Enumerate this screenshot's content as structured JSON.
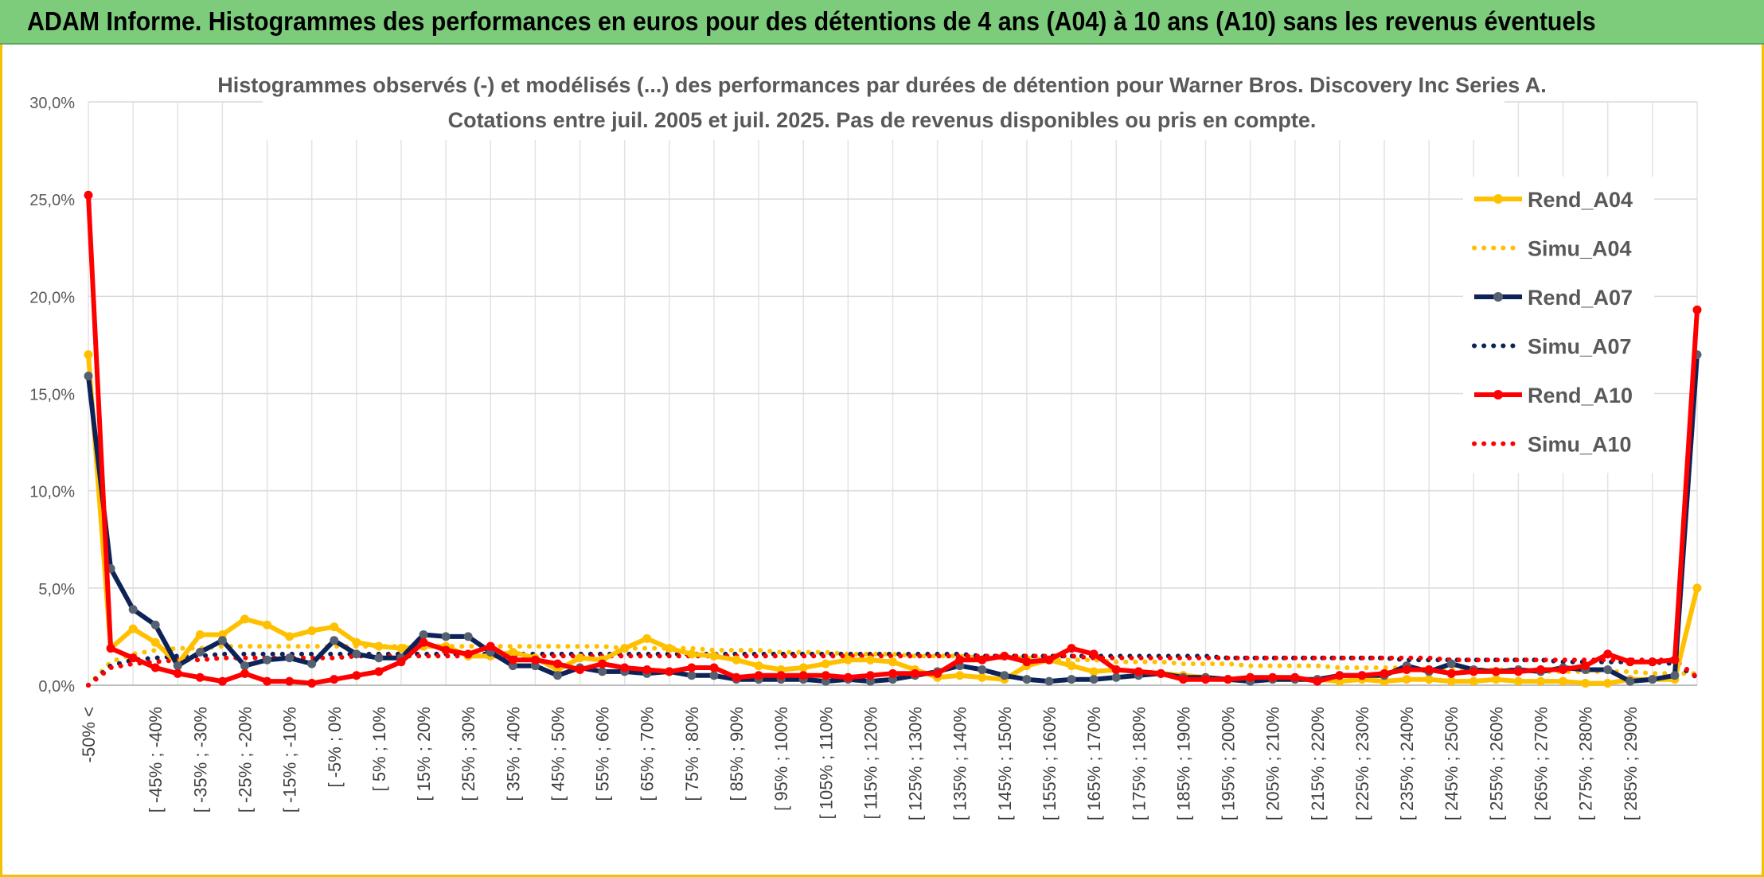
{
  "banner": {
    "title": "ADAM Informe. Histogrammes des performances en euros pour des détentions de 4 ans (A04) à 10 ans (A10) sans les revenus éventuels"
  },
  "colors": {
    "A04": "#ffc000",
    "A07": "#0d2357",
    "A07_marker": "#556070",
    "A10": "#ff0000",
    "banner": "#7ccc7c",
    "grid": "#d9d9d9"
  },
  "chart_data": {
    "type": "line",
    "title": "Histogrammes observés (-) et modélisés (...) des performances par durées de détention pour Warner Bros. Discovery Inc Series A.",
    "subtitle": "Cotations entre juil. 2005 et juil. 2025. Pas de revenus disponibles ou pris en compte.",
    "ylim": [
      0,
      30
    ],
    "grid": true,
    "legend_position": "right",
    "y_ticks": [
      "0,0%",
      "5,0%",
      "10,0%",
      "15,0%",
      "20,0%",
      "25,0%",
      "30,0%"
    ],
    "x_tick_labels": [
      "-50% <",
      "[ -45% ; -40%",
      "[ -35% ; -30%",
      "[ -25% ; -20%",
      "[ -15% ; -10%",
      "[ -5% ; 0%",
      "[ 5% ; 10%",
      "[ 15% ; 20%",
      "[ 25% ; 30%",
      "[ 35% ; 40%",
      "[ 45% ; 50%",
      "[ 55% ; 60%",
      "[ 65% ; 70%",
      "[ 75% ; 80%",
      "[ 85% ; 90%",
      "[ 95% ; 100%",
      "[ 105% ; 110%",
      "[ 115% ; 120%",
      "[ 125% ; 130%",
      "[ 135% ; 140%",
      "[ 145% ; 150%",
      "[ 155% ; 160%",
      "[ 165% ; 170%",
      "[ 175% ; 180%",
      "[ 185% ; 190%",
      "[ 195% ; 200%",
      "[ 205% ; 210%",
      "[ 215% ; 220%",
      "[ 225% ; 230%",
      "[ 235% ; 240%",
      "[ 245% ; 250%",
      "[ 255% ; 260%",
      "[ 265% ; 270%",
      "[ 275% ; 280%",
      "[ 285% ; 290%"
    ],
    "series": [
      {
        "name": "Rend_A04",
        "style": "solid",
        "color": "#ffc000",
        "values": [
          17.0,
          1.9,
          2.9,
          2.2,
          1.1,
          2.6,
          2.6,
          3.4,
          3.1,
          2.5,
          2.8,
          3.0,
          2.2,
          2.0,
          1.9,
          2.0,
          2.0,
          1.5,
          1.5,
          1.7,
          1.4,
          0.8,
          1.4,
          1.3,
          1.9,
          2.4,
          1.9,
          1.6,
          1.5,
          1.3,
          1.0,
          0.8,
          0.9,
          1.1,
          1.3,
          1.3,
          1.2,
          0.8,
          0.4,
          0.5,
          0.4,
          0.3,
          1.0,
          1.3,
          1.0,
          0.7,
          0.8,
          0.7,
          0.6,
          0.5,
          0.4,
          0.3,
          0.4,
          0.3,
          0.3,
          0.3,
          0.2,
          0.3,
          0.2,
          0.3,
          0.3,
          0.2,
          0.2,
          0.3,
          0.2,
          0.2,
          0.2,
          0.1,
          0.1,
          0.3,
          0.3,
          0.3,
          5.0
        ]
      },
      {
        "name": "Simu_A04",
        "style": "dotted",
        "color": "#ffc000",
        "values": [
          0.0,
          1.2,
          1.6,
          1.8,
          1.9,
          1.9,
          2.0,
          2.0,
          2.0,
          2.0,
          2.0,
          2.0,
          2.0,
          2.0,
          2.0,
          2.0,
          2.0,
          2.0,
          2.0,
          2.0,
          2.0,
          2.0,
          2.0,
          2.0,
          1.9,
          1.9,
          1.9,
          1.9,
          1.8,
          1.8,
          1.8,
          1.7,
          1.7,
          1.7,
          1.6,
          1.6,
          1.6,
          1.5,
          1.5,
          1.5,
          1.4,
          1.4,
          1.4,
          1.3,
          1.3,
          1.3,
          1.2,
          1.2,
          1.2,
          1.1,
          1.1,
          1.1,
          1.0,
          1.0,
          1.0,
          1.0,
          0.9,
          0.9,
          0.9,
          0.9,
          0.8,
          0.8,
          0.8,
          0.8,
          0.8,
          0.7,
          0.7,
          0.7,
          0.7,
          0.7,
          0.6,
          0.6,
          0.6
        ]
      },
      {
        "name": "Rend_A07",
        "style": "solid",
        "color": "#0d2357",
        "values": [
          15.9,
          6.0,
          3.9,
          3.1,
          1.0,
          1.7,
          2.3,
          1.0,
          1.3,
          1.4,
          1.1,
          2.3,
          1.6,
          1.4,
          1.4,
          2.6,
          2.5,
          2.5,
          1.7,
          1.0,
          1.0,
          0.5,
          0.9,
          0.7,
          0.7,
          0.6,
          0.7,
          0.5,
          0.5,
          0.3,
          0.3,
          0.3,
          0.3,
          0.2,
          0.3,
          0.2,
          0.3,
          0.5,
          0.7,
          1.0,
          0.8,
          0.5,
          0.3,
          0.2,
          0.3,
          0.3,
          0.4,
          0.5,
          0.6,
          0.4,
          0.4,
          0.3,
          0.2,
          0.3,
          0.3,
          0.3,
          0.5,
          0.5,
          0.5,
          1.0,
          0.7,
          1.1,
          0.8,
          0.7,
          0.8,
          0.7,
          0.9,
          0.8,
          0.8,
          0.2,
          0.3,
          0.5,
          17.0
        ]
      },
      {
        "name": "Simu_A07",
        "style": "dotted",
        "color": "#0d2357",
        "values": [
          0.0,
          1.0,
          1.3,
          1.4,
          1.5,
          1.5,
          1.6,
          1.6,
          1.6,
          1.6,
          1.6,
          1.6,
          1.6,
          1.6,
          1.6,
          1.6,
          1.6,
          1.6,
          1.6,
          1.6,
          1.6,
          1.6,
          1.6,
          1.6,
          1.6,
          1.6,
          1.6,
          1.6,
          1.6,
          1.6,
          1.6,
          1.6,
          1.6,
          1.6,
          1.6,
          1.6,
          1.6,
          1.6,
          1.6,
          1.6,
          1.5,
          1.5,
          1.5,
          1.5,
          1.5,
          1.5,
          1.5,
          1.5,
          1.5,
          1.5,
          1.5,
          1.4,
          1.4,
          1.4,
          1.4,
          1.4,
          1.4,
          1.4,
          1.4,
          1.3,
          1.3,
          1.3,
          1.3,
          1.3,
          1.3,
          1.3,
          1.2,
          1.2,
          1.2,
          1.2,
          1.2,
          1.1,
          0.4
        ]
      },
      {
        "name": "Rend_A10",
        "style": "solid",
        "color": "#ff0000",
        "values": [
          25.2,
          1.9,
          1.4,
          0.9,
          0.6,
          0.4,
          0.2,
          0.6,
          0.2,
          0.2,
          0.1,
          0.3,
          0.5,
          0.7,
          1.2,
          2.2,
          1.8,
          1.6,
          2.0,
          1.3,
          1.3,
          1.1,
          0.8,
          1.1,
          0.9,
          0.8,
          0.7,
          0.9,
          0.9,
          0.4,
          0.5,
          0.5,
          0.5,
          0.5,
          0.4,
          0.5,
          0.6,
          0.6,
          0.6,
          1.3,
          1.3,
          1.5,
          1.2,
          1.3,
          1.9,
          1.6,
          0.8,
          0.7,
          0.6,
          0.3,
          0.3,
          0.3,
          0.4,
          0.4,
          0.4,
          0.2,
          0.5,
          0.5,
          0.6,
          0.8,
          0.8,
          0.6,
          0.7,
          0.7,
          0.7,
          0.8,
          0.8,
          1.0,
          1.6,
          1.2,
          1.2,
          1.3,
          19.3
        ]
      },
      {
        "name": "Simu_A10",
        "style": "dotted",
        "color": "#ff0000",
        "values": [
          0.0,
          0.9,
          1.1,
          1.2,
          1.3,
          1.3,
          1.4,
          1.4,
          1.4,
          1.4,
          1.4,
          1.4,
          1.5,
          1.5,
          1.5,
          1.5,
          1.5,
          1.5,
          1.5,
          1.5,
          1.5,
          1.5,
          1.5,
          1.5,
          1.5,
          1.5,
          1.5,
          1.5,
          1.5,
          1.5,
          1.5,
          1.5,
          1.5,
          1.5,
          1.5,
          1.5,
          1.5,
          1.5,
          1.5,
          1.5,
          1.5,
          1.5,
          1.5,
          1.5,
          1.5,
          1.4,
          1.4,
          1.4,
          1.4,
          1.4,
          1.4,
          1.4,
          1.4,
          1.4,
          1.4,
          1.4,
          1.4,
          1.4,
          1.4,
          1.4,
          1.4,
          1.3,
          1.3,
          1.3,
          1.3,
          1.3,
          1.3,
          1.3,
          1.3,
          1.3,
          1.3,
          1.3,
          0.4
        ]
      }
    ]
  }
}
